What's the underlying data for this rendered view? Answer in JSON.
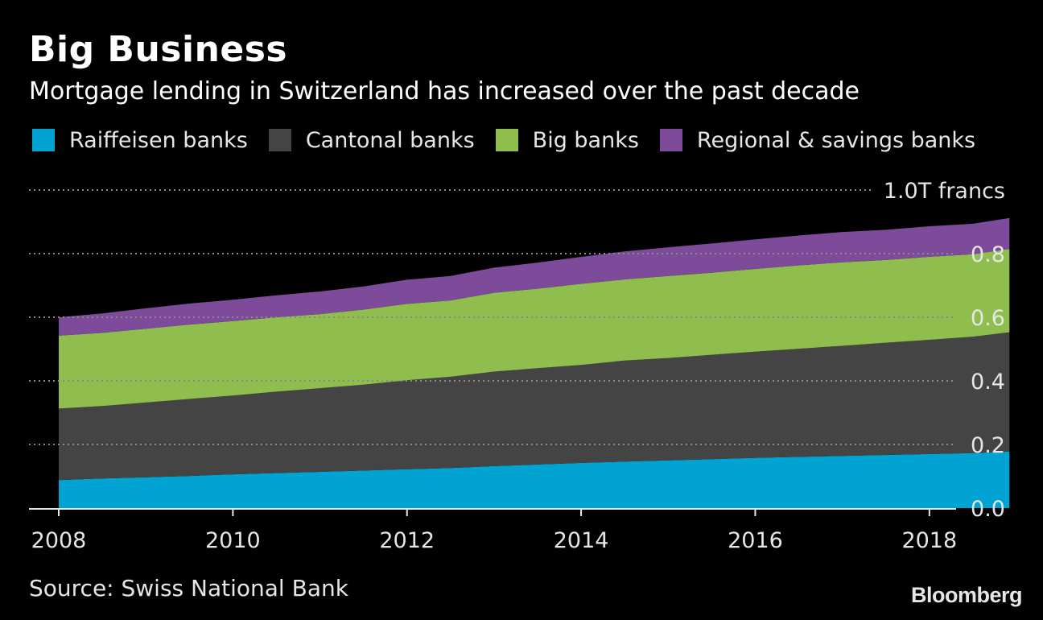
{
  "title": "Big Business",
  "subtitle": "Mortgage lending in Switzerland has increased over the past decade",
  "source": "Source: Swiss National Bank",
  "logo": "Bloomberg",
  "colors": {
    "background": "#000000",
    "raiffeisen": "#00a3d1",
    "cantonal": "#444444",
    "big": "#8fbd4e",
    "regional": "#7e4a9a",
    "grid": "#8a8a8a",
    "text": "#e6e6e6"
  },
  "chart_data": {
    "type": "area",
    "stacked": true,
    "title": "Big Business",
    "subtitle": "Mortgage lending in Switzerland has increased over the past decade",
    "xlabel": "",
    "ylabel": "",
    "unit_label": "1.0T francs",
    "xlim": [
      2008,
      2019
    ],
    "ylim": [
      0,
      1.0
    ],
    "x_ticks": [
      2008,
      2010,
      2012,
      2014,
      2016,
      2018
    ],
    "x_tick_labels": [
      "2008",
      "2010",
      "2012",
      "2014",
      "2016",
      "2018"
    ],
    "y_ticks": [
      0,
      0.2,
      0.4,
      0.6,
      0.8,
      1.0
    ],
    "y_tick_labels": [
      "0.0",
      "0.2",
      "0.4",
      "0.6",
      "0.8",
      "1.0T francs"
    ],
    "grid": true,
    "legend_position": "top",
    "x": [
      2008,
      2008.5,
      2009,
      2009.5,
      2010,
      2010.5,
      2011,
      2011.5,
      2012,
      2012.5,
      2013,
      2013.5,
      2014,
      2014.5,
      2015,
      2015.5,
      2016,
      2016.5,
      2017,
      2017.5,
      2018,
      2018.5,
      2018.92
    ],
    "series": [
      {
        "name": "Raiffeisen banks",
        "color": "#00a3d1",
        "values": [
          0.088,
          0.093,
          0.097,
          0.101,
          0.106,
          0.11,
          0.114,
          0.118,
          0.122,
          0.126,
          0.132,
          0.137,
          0.142,
          0.146,
          0.15,
          0.154,
          0.158,
          0.161,
          0.164,
          0.167,
          0.17,
          0.173,
          0.178
        ]
      },
      {
        "name": "Cantonal banks",
        "color": "#444444",
        "values": [
          0.225,
          0.228,
          0.235,
          0.242,
          0.248,
          0.256,
          0.263,
          0.27,
          0.28,
          0.287,
          0.297,
          0.303,
          0.308,
          0.318,
          0.322,
          0.328,
          0.334,
          0.34,
          0.346,
          0.353,
          0.359,
          0.366,
          0.375
        ]
      },
      {
        "name": "Big banks",
        "color": "#8fbd4e",
        "values": [
          0.229,
          0.23,
          0.232,
          0.234,
          0.234,
          0.234,
          0.233,
          0.236,
          0.24,
          0.24,
          0.248,
          0.25,
          0.255,
          0.255,
          0.258,
          0.258,
          0.26,
          0.262,
          0.263,
          0.26,
          0.261,
          0.259,
          0.262
        ]
      },
      {
        "name": "Regional & savings banks",
        "color": "#7e4a9a",
        "values": [
          0.058,
          0.061,
          0.064,
          0.066,
          0.067,
          0.069,
          0.071,
          0.073,
          0.076,
          0.077,
          0.079,
          0.082,
          0.085,
          0.088,
          0.09,
          0.092,
          0.093,
          0.094,
          0.095,
          0.095,
          0.096,
          0.096,
          0.097
        ]
      }
    ]
  }
}
